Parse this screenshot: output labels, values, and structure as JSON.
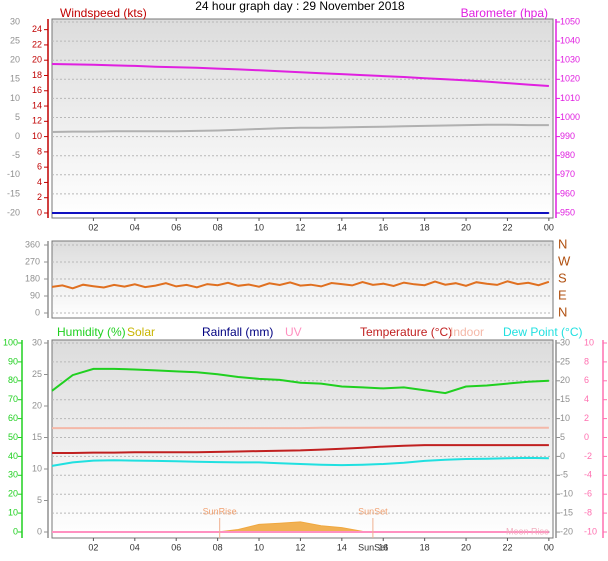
{
  "title": "24 hour graph day : 29 November 2018",
  "chart_data": [
    {
      "type": "line",
      "y_label": "Windspeed (kts)",
      "ycolor": "#c00000",
      "ylim": [
        0,
        25
      ],
      "yticks": [
        0,
        2,
        4,
        6,
        8,
        10,
        12,
        14,
        16,
        18,
        20,
        22,
        24
      ],
      "y2_label": "Barometer (hpa)",
      "y2color": "#e020e0",
      "y2lim": [
        950,
        1050
      ],
      "y2ticks": [
        950,
        960,
        970,
        980,
        990,
        1000,
        1010,
        1020,
        1030,
        1040,
        1050
      ],
      "y3color": "#909090",
      "y3lim": [
        -20,
        30
      ],
      "y3ticks": [
        -20,
        -15,
        -10,
        -5,
        0,
        5,
        10,
        15,
        20,
        25,
        30
      ],
      "grid": "y3",
      "xlim": [
        0,
        24.2
      ],
      "xticks": [
        {
          "value": 2,
          "label": "02"
        },
        {
          "value": 4,
          "label": "04"
        },
        {
          "value": 6,
          "label": "06"
        },
        {
          "value": 8,
          "label": "08"
        },
        10,
        12,
        14,
        16,
        18,
        20,
        22,
        {
          "value": 24,
          "label": "00"
        }
      ],
      "x": [
        0,
        1,
        2,
        3,
        4,
        5,
        6,
        7,
        8,
        9,
        10,
        11,
        12,
        13,
        14,
        15,
        16,
        17,
        18,
        19,
        20,
        21,
        22,
        23,
        24
      ],
      "series": [
        {
          "color": "#b0b0b0",
          "axis": "y3",
          "values": [
            1.2,
            1.3,
            1.3,
            1.4,
            1.4,
            1.4,
            1.4,
            1.5,
            1.6,
            1.8,
            2.0,
            2.2,
            2.3,
            2.3,
            2.4,
            2.5,
            2.6,
            2.7,
            2.8,
            2.9,
            3.0,
            3.1,
            3.1,
            3.0,
            3.0
          ]
        },
        {
          "color": "#e020e0",
          "axis": "y2",
          "values": [
            1028,
            1027.8,
            1027.6,
            1027.3,
            1027,
            1026.6,
            1026.3,
            1026,
            1025.6,
            1025.2,
            1024.7,
            1024.2,
            1023.7,
            1023.2,
            1022.7,
            1022.2,
            1021.7,
            1021.2,
            1020.6,
            1020,
            1019.4,
            1018.8,
            1018,
            1017.2,
            1016.5
          ]
        },
        {
          "color": "#1010c0",
          "axis": "y",
          "values": [
            0,
            0,
            0,
            0,
            0,
            0,
            0,
            0,
            0,
            0,
            0,
            0,
            0,
            0,
            0,
            0,
            0,
            0,
            0,
            0,
            0,
            0,
            0,
            0,
            0
          ]
        }
      ]
    },
    {
      "type": "line",
      "ycolor": "#909090",
      "ylim": [
        0,
        360
      ],
      "yticks": [
        0,
        90,
        180,
        270,
        360
      ],
      "y2color": "#b05010",
      "y2lim": [
        0,
        360
      ],
      "y2ticks": [
        {
          "value": 0,
          "label": "N"
        },
        {
          "value": 90,
          "label": "E"
        },
        {
          "value": 180,
          "label": "S"
        },
        {
          "value": 270,
          "label": "W"
        },
        {
          "value": 360,
          "label": "N"
        }
      ],
      "grid": "y",
      "xlim": [
        0,
        24.2
      ],
      "x": [
        0,
        0.5,
        1,
        1.5,
        2,
        2.5,
        3,
        3.5,
        4,
        4.5,
        5,
        5.5,
        6,
        6.5,
        7,
        7.5,
        8,
        8.5,
        9,
        9.5,
        10,
        10.5,
        11,
        11.5,
        12,
        12.5,
        13,
        13.5,
        14,
        14.5,
        15,
        15.5,
        16,
        16.5,
        17,
        17.5,
        18,
        18.5,
        19,
        19.5,
        20,
        20.5,
        21,
        21.5,
        22,
        22.5,
        23,
        23.5,
        24
      ],
      "series": [
        {
          "color": "#e07020",
          "axis": "y",
          "values": [
            138,
            146,
            131,
            150,
            142,
            135,
            149,
            140,
            152,
            137,
            145,
            158,
            141,
            149,
            136,
            153,
            147,
            160,
            144,
            151,
            139,
            157,
            148,
            162,
            145,
            150,
            141,
            159,
            153,
            146,
            164,
            149,
            155,
            143,
            161,
            152,
            147,
            166,
            150,
            158,
            144,
            163,
            155,
            149,
            168,
            153,
            160,
            147,
            165
          ]
        }
      ]
    },
    {
      "type": "line",
      "ycolor": "#909090",
      "ylim": [
        0,
        30
      ],
      "yticks": [
        0,
        5,
        10,
        15,
        20,
        25,
        30
      ],
      "y2color": "#909090",
      "y2lim": [
        -20,
        30
      ],
      "y2ticks": [
        -20,
        -15,
        -10,
        -5,
        0,
        5,
        10,
        15,
        20,
        25,
        30
      ],
      "y3color": "#20d020",
      "y3lim": [
        0,
        100
      ],
      "y3ticks": [
        0,
        10,
        20,
        30,
        40,
        50,
        60,
        70,
        80,
        90,
        100
      ],
      "y4color": "#ff70b0",
      "y4lim": [
        -10,
        10
      ],
      "y4ticks": [
        -10,
        -8,
        -6,
        -4,
        -2,
        0,
        2,
        4,
        6,
        8,
        10
      ],
      "grid": "y3",
      "xlim": [
        0,
        24.2
      ],
      "xticks": [
        {
          "value": 2,
          "label": "02"
        },
        {
          "value": 4,
          "label": "04"
        },
        {
          "value": 6,
          "label": "06"
        },
        {
          "value": 8,
          "label": "08"
        },
        10,
        12,
        14,
        16,
        18,
        20,
        22,
        {
          "value": 24,
          "label": "00"
        }
      ],
      "x": [
        0,
        1,
        2,
        3,
        4,
        5,
        6,
        7,
        8,
        9,
        10,
        11,
        12,
        13,
        14,
        15,
        16,
        17,
        18,
        19,
        20,
        21,
        22,
        23,
        24
      ],
      "series": [
        {
          "name": "Humidity (%)",
          "color": "#20d020",
          "axis": "y3",
          "values": [
            74.7,
            83,
            86.3,
            86.3,
            86,
            85.5,
            85,
            84.5,
            83.5,
            82,
            81,
            80.5,
            79,
            78.5,
            77,
            76.5,
            76,
            76.5,
            75,
            73.5,
            77,
            77.5,
            78.5,
            79.5,
            80
          ]
        },
        {
          "name": "Solar",
          "color": "#c8b400",
          "fill": "#f0a840",
          "style": "area",
          "axis": "y",
          "values": [
            0,
            0,
            0,
            0,
            0,
            0,
            0,
            0,
            0,
            0.4,
            1.2,
            1.4,
            1.6,
            1.0,
            0.7,
            0.1,
            0,
            0,
            0,
            0,
            0,
            0,
            0,
            0,
            0
          ]
        },
        {
          "name": "Rainfall (mm)",
          "color": "#000080",
          "axis": "y",
          "values": [
            0,
            0,
            0,
            0,
            0,
            0,
            0,
            0,
            0,
            0,
            0,
            0,
            0,
            0,
            0,
            0,
            0,
            0,
            0,
            0,
            0,
            0,
            0,
            0,
            0
          ]
        },
        {
          "name": "UV",
          "color": "#ff90c0",
          "axis": "y",
          "values": [
            0,
            0,
            0,
            0,
            0,
            0,
            0,
            0,
            0,
            0,
            0,
            0,
            0,
            0,
            0,
            0,
            0,
            0,
            0,
            0,
            0,
            0,
            0,
            0,
            0
          ]
        },
        {
          "name": "Temperature (°C)",
          "color": "#c02020",
          "axis": "y2",
          "values": [
            0.9,
            0.9,
            1.0,
            1.0,
            1.1,
            1.1,
            1.1,
            1.1,
            1.2,
            1.3,
            1.4,
            1.5,
            1.6,
            1.8,
            2.0,
            2.3,
            2.6,
            2.8,
            3.0,
            3.0,
            3.0,
            3.0,
            3.0,
            3.0,
            3.0
          ]
        },
        {
          "name": "Indoor",
          "color": "#f4b8a8",
          "axis": "y2",
          "values": [
            7.5,
            7.5,
            7.5,
            7.5,
            7.5,
            7.5,
            7.5,
            7.5,
            7.5,
            7.5,
            7.5,
            7.5,
            7.5,
            7.6,
            7.6,
            7.6,
            7.6,
            7.6,
            7.6,
            7.6,
            7.6,
            7.6,
            7.6,
            7.6,
            7.6
          ]
        },
        {
          "name": "Dew Point (°C)",
          "color": "#20e0e0",
          "axis": "y2",
          "values": [
            -2.5,
            -1.6,
            -1.1,
            -1.0,
            -1.1,
            -1.2,
            -1.3,
            -1.4,
            -1.5,
            -1.6,
            -1.6,
            -1.8,
            -2.0,
            -2.2,
            -2.3,
            -2.2,
            -2.0,
            -1.7,
            -1.2,
            -0.9,
            -0.7,
            -0.6,
            -0.5,
            -0.4,
            -0.5
          ]
        }
      ],
      "annotations": [
        {
          "text": "SunRise",
          "x": 8.1
        },
        {
          "text": "SunSet",
          "x": 15.5
        },
        {
          "text": "Moon Rise"
        }
      ]
    }
  ]
}
